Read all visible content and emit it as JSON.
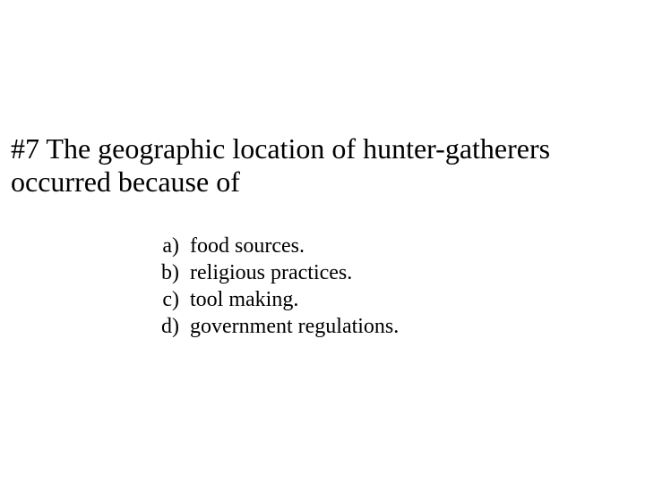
{
  "question": {
    "number_prefix": "#7",
    "text": "#7 The geographic location of hunter-gatherers occurred because of"
  },
  "options": [
    {
      "letter": "a)",
      "text": "food sources."
    },
    {
      "letter": "b)",
      "text": "religious practices."
    },
    {
      "letter": "c)",
      "text": "tool making."
    },
    {
      "letter": "d)",
      "text": "government regulations."
    }
  ],
  "style": {
    "background_color": "#ffffff",
    "text_color": "#000000",
    "font_family": "Comic Sans MS",
    "question_fontsize": 32,
    "option_fontsize": 24
  }
}
